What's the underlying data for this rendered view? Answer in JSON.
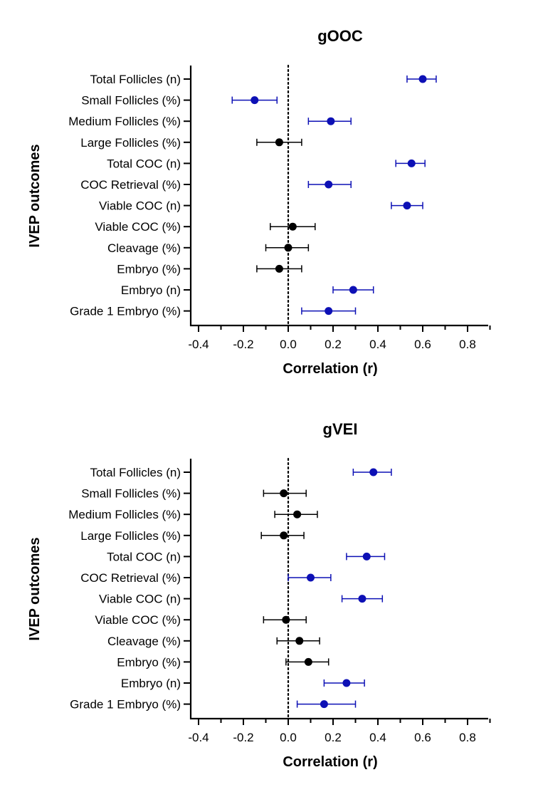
{
  "colors": {
    "significant": "#0d10b5",
    "nonsignificant": "#000000"
  },
  "chart_data": [
    {
      "type": "scatter",
      "style": "forest-plot",
      "title": "gOOC",
      "xlabel": "Correlation (r)",
      "ylabel": "IVEP outcomes",
      "xlim": [
        -0.4,
        0.9
      ],
      "xticks": [
        "-0.4",
        "-0.2",
        "0.0",
        "0.2",
        "0.4",
        "0.6",
        "0.8"
      ],
      "reference_line": 0,
      "points": [
        {
          "label": "Total Follicles (n)",
          "r": 0.6,
          "lo": 0.53,
          "hi": 0.66,
          "significant": true
        },
        {
          "label": "Small Follicles (%)",
          "r": -0.15,
          "lo": -0.25,
          "hi": -0.05,
          "significant": true
        },
        {
          "label": "Medium Follicles (%)",
          "r": 0.19,
          "lo": 0.09,
          "hi": 0.28,
          "significant": true
        },
        {
          "label": "Large Follicles (%)",
          "r": -0.04,
          "lo": -0.14,
          "hi": 0.06,
          "significant": false
        },
        {
          "label": "Total COC (n)",
          "r": 0.55,
          "lo": 0.48,
          "hi": 0.61,
          "significant": true
        },
        {
          "label": "COC Retrieval (%)",
          "r": 0.18,
          "lo": 0.09,
          "hi": 0.28,
          "significant": true
        },
        {
          "label": "Viable COC (n)",
          "r": 0.53,
          "lo": 0.46,
          "hi": 0.6,
          "significant": true
        },
        {
          "label": "Viable COC (%)",
          "r": 0.02,
          "lo": -0.08,
          "hi": 0.12,
          "significant": false
        },
        {
          "label": "Cleavage (%)",
          "r": 0.0,
          "lo": -0.1,
          "hi": 0.09,
          "significant": false
        },
        {
          "label": "Embryo (%)",
          "r": -0.04,
          "lo": -0.14,
          "hi": 0.06,
          "significant": false
        },
        {
          "label": "Embryo (n)",
          "r": 0.29,
          "lo": 0.2,
          "hi": 0.38,
          "significant": true
        },
        {
          "label": "Grade 1 Embryo (%)",
          "r": 0.18,
          "lo": 0.06,
          "hi": 0.3,
          "significant": true
        }
      ]
    },
    {
      "type": "scatter",
      "style": "forest-plot",
      "title": "gVEI",
      "xlabel": "Correlation (r)",
      "ylabel": "IVEP outcomes",
      "xlim": [
        -0.4,
        0.9
      ],
      "xticks": [
        "-0.4",
        "-0.2",
        "0.0",
        "0.2",
        "0.4",
        "0.6",
        "0.8"
      ],
      "reference_line": 0,
      "points": [
        {
          "label": "Total Follicles (n)",
          "r": 0.38,
          "lo": 0.29,
          "hi": 0.46,
          "significant": true
        },
        {
          "label": "Small Follicles (%)",
          "r": -0.02,
          "lo": -0.11,
          "hi": 0.08,
          "significant": false
        },
        {
          "label": "Medium Follicles (%)",
          "r": 0.04,
          "lo": -0.06,
          "hi": 0.13,
          "significant": false
        },
        {
          "label": "Large Follicles (%)",
          "r": -0.02,
          "lo": -0.12,
          "hi": 0.07,
          "significant": false
        },
        {
          "label": "Total COC (n)",
          "r": 0.35,
          "lo": 0.26,
          "hi": 0.43,
          "significant": true
        },
        {
          "label": "COC Retrieval (%)",
          "r": 0.1,
          "lo": 0.0,
          "hi": 0.19,
          "significant": true
        },
        {
          "label": "Viable COC (n)",
          "r": 0.33,
          "lo": 0.24,
          "hi": 0.42,
          "significant": true
        },
        {
          "label": "Viable COC (%)",
          "r": -0.01,
          "lo": -0.11,
          "hi": 0.08,
          "significant": false
        },
        {
          "label": "Cleavage (%)",
          "r": 0.05,
          "lo": -0.05,
          "hi": 0.14,
          "significant": false
        },
        {
          "label": "Embryo (%)",
          "r": 0.09,
          "lo": -0.01,
          "hi": 0.18,
          "significant": false
        },
        {
          "label": "Embryo (n)",
          "r": 0.26,
          "lo": 0.16,
          "hi": 0.34,
          "significant": true
        },
        {
          "label": "Grade 1 Embryo (%)",
          "r": 0.16,
          "lo": 0.04,
          "hi": 0.3,
          "significant": true
        }
      ]
    }
  ]
}
